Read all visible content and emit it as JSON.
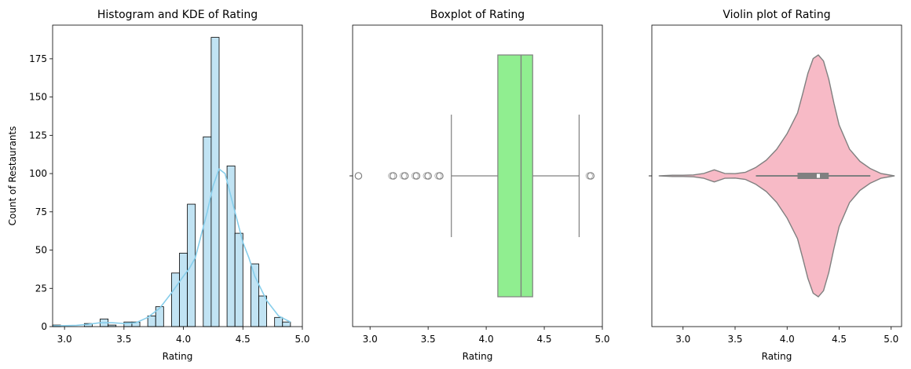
{
  "chart_data": [
    {
      "type": "histogram",
      "title": "Histogram and KDE of Rating",
      "xlabel": "Rating",
      "ylabel": "Count of Restaurants",
      "xlim": [
        2.9,
        5.0
      ],
      "ylim": [
        0,
        197
      ],
      "xticks": [
        "3.0",
        "3.5",
        "4.0",
        "4.5",
        "5.0"
      ],
      "xtick_values": [
        3.0,
        3.5,
        4.0,
        4.5,
        5.0
      ],
      "yticks": [
        "0",
        "25",
        "50",
        "75",
        "100",
        "125",
        "150",
        "175"
      ],
      "ytick_values": [
        0,
        25,
        50,
        75,
        100,
        125,
        150,
        175
      ],
      "bin_edges": [
        2.9,
        2.9667,
        3.0333,
        3.1,
        3.1667,
        3.2333,
        3.3,
        3.3667,
        3.4333,
        3.5,
        3.5667,
        3.6333,
        3.7,
        3.7667,
        3.8333,
        3.9,
        3.9667,
        4.0333,
        4.1,
        4.1667,
        4.2333,
        4.3,
        4.3667,
        4.4333,
        4.5,
        4.5667,
        4.6333,
        4.7,
        4.7667,
        4.8333,
        4.9
      ],
      "counts": [
        1,
        0,
        0,
        0,
        2,
        0,
        5,
        1,
        0,
        3,
        3,
        0,
        7,
        13,
        0,
        35,
        48,
        80,
        0,
        124,
        189,
        0,
        105,
        61,
        0,
        41,
        20,
        0,
        6,
        3
      ],
      "kde": {
        "x": [
          2.9,
          3.0,
          3.1,
          3.2,
          3.3,
          3.4,
          3.5,
          3.6,
          3.7,
          3.8,
          3.9,
          4.0,
          4.05,
          4.1,
          4.15,
          4.2,
          4.25,
          4.3,
          4.35,
          4.4,
          4.45,
          4.5,
          4.55,
          4.6,
          4.7,
          4.8,
          4.9
        ],
        "y": [
          0.5,
          0.6,
          0.8,
          1.5,
          2.5,
          2.5,
          2,
          2.5,
          6,
          12,
          22,
          33,
          38,
          45,
          60,
          75,
          92,
          103,
          100,
          85,
          70,
          55,
          45,
          33,
          17,
          7,
          3
        ]
      },
      "colors": {
        "bar_fill": "#c1e3f3",
        "bar_edge": "#000000",
        "kde": "#87ceeb"
      }
    },
    {
      "type": "boxplot",
      "title": "Boxplot of Rating",
      "xlabel": "Rating",
      "xlim": [
        2.85,
        5.0
      ],
      "xticks": [
        "3.0",
        "3.5",
        "4.0",
        "4.5",
        "5.0"
      ],
      "xtick_values": [
        3.0,
        3.5,
        4.0,
        4.5,
        5.0
      ],
      "box": {
        "whisker_low": 3.7,
        "q1": 4.1,
        "median": 4.3,
        "q3": 4.4,
        "whisker_high": 4.8
      },
      "outliers": [
        2.9,
        3.2,
        3.3,
        3.4,
        3.5,
        3.6,
        4.9
      ],
      "colors": {
        "box": "#90ee90",
        "line": "#808080"
      }
    },
    {
      "type": "violin",
      "title": "Violin plot of Rating",
      "xlabel": "Rating",
      "xlim": [
        2.7,
        5.1
      ],
      "xticks": [
        "3.0",
        "3.5",
        "4.0",
        "4.5",
        "5.0"
      ],
      "xtick_values": [
        3.0,
        3.5,
        4.0,
        4.5,
        5.0
      ],
      "density": {
        "x": [
          2.77,
          2.9,
          3.0,
          3.1,
          3.2,
          3.3,
          3.4,
          3.5,
          3.6,
          3.7,
          3.8,
          3.9,
          4.0,
          4.1,
          4.15,
          4.2,
          4.25,
          4.3,
          4.35,
          4.4,
          4.45,
          4.5,
          4.6,
          4.7,
          4.8,
          4.9,
          5.03
        ],
        "w": [
          0,
          0.005,
          0.005,
          0.008,
          0.02,
          0.05,
          0.02,
          0.018,
          0.03,
          0.07,
          0.13,
          0.22,
          0.35,
          0.52,
          0.68,
          0.85,
          0.97,
          1.0,
          0.95,
          0.8,
          0.6,
          0.42,
          0.22,
          0.12,
          0.06,
          0.02,
          0
        ]
      },
      "box": {
        "whisker_low": 3.7,
        "q1": 4.1,
        "median": 4.3,
        "q3": 4.4,
        "whisker_high": 4.8
      },
      "colors": {
        "fill": "#f7bac6",
        "line": "#808080"
      }
    }
  ]
}
